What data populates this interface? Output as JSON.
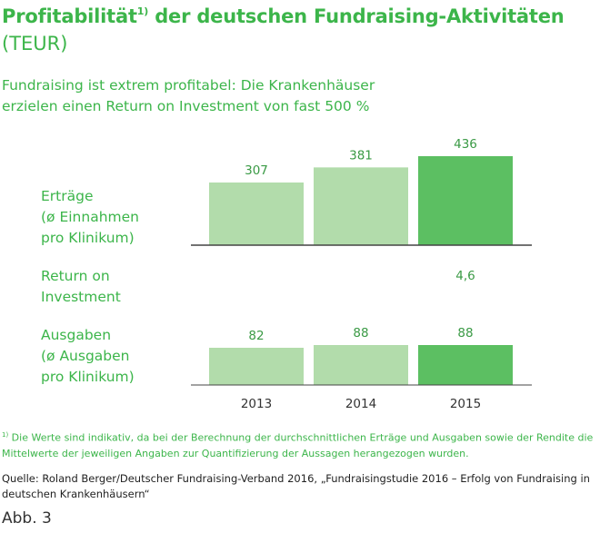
{
  "title": "Profitabilität",
  "title_sup": "1)",
  "title_rest": " der deutschen Fundraising-Aktivitäten",
  "title_unit": "(TEUR)",
  "subtitle": "Fundraising ist extrem profitabel: Die Krankenhäuser erzielen einen Return on Investment von fast 500 %",
  "row_labels": {
    "ertraege": "Erträge\n(ø Einnahmen\npro Klinikum)",
    "roi": "Return on\nInvestment",
    "ausgaben": "Ausgaben\n(ø Ausgaben\npro Klinikum)"
  },
  "colors": {
    "light": "#b2dcab",
    "dark": "#5cbf62",
    "text_green": "#3cb54a",
    "baseline": "#444444"
  },
  "chart_data": [
    {
      "type": "bar",
      "name": "Erträge",
      "categories": [
        "2013",
        "2014",
        "2015"
      ],
      "values": [
        307,
        381,
        436
      ],
      "ylim": [
        0,
        436
      ]
    },
    {
      "type": "table",
      "name": "Return on Investment",
      "categories": [
        "2015"
      ],
      "values": [
        "4,6"
      ]
    },
    {
      "type": "bar",
      "name": "Ausgaben",
      "categories": [
        "2013",
        "2014",
        "2015"
      ],
      "values": [
        82,
        88,
        88
      ],
      "ylim": [
        0,
        88
      ]
    }
  ],
  "footnote_sup": "1)",
  "footnote": " Die Werte sind indikativ, da bei der Berechnung der durchschnittlichen Erträge und Ausgaben sowie der Rendite die Mittelwerte der jeweiligen Angaben zur Quantifizierung der Aussagen herangezogen wurden.",
  "source": "Quelle: Roland Berger/Deutscher Fundraising-Verband 2016, „Fundraisingstudie 2016 – Erfolg von Fundraising in deutschen Krankenhäusern“",
  "figure_label": "Abb. 3"
}
